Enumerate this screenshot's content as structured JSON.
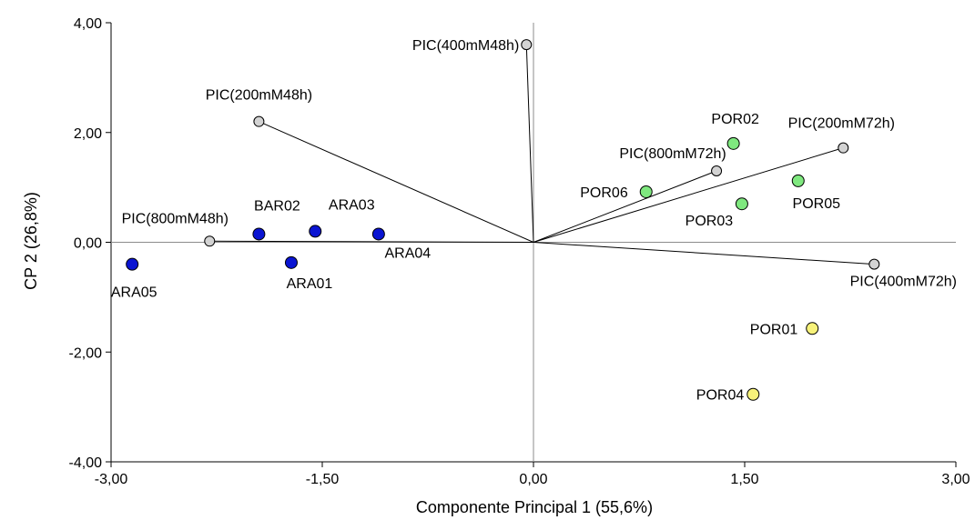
{
  "chart_data": {
    "type": "scatter",
    "title": "",
    "xlabel": "Componente Principal 1 (55,6%)",
    "ylabel": "CP 2 (26,8%)",
    "xlim": [
      -3,
      3
    ],
    "ylim": [
      -4,
      4
    ],
    "x_ticks": [
      "-3,00",
      "-1,50",
      "0,00",
      "1,50",
      "3,00"
    ],
    "y_ticks": [
      "4,00",
      "2,00",
      "0,00",
      "-2,00",
      "-4,00"
    ],
    "grid": false,
    "legend": "none",
    "colors": {
      "vector_point": "#d3d3d3",
      "group_blue": "#0a14d2",
      "group_green": "#7fe87f",
      "group_yellow": "#f7f27a"
    },
    "vectors": [
      {
        "label": "PIC(400mM48h)",
        "x": -0.05,
        "y": 3.6
      },
      {
        "label": "PIC(200mM48h)",
        "x": -1.95,
        "y": 2.2
      },
      {
        "label": "PIC(800mM48h)",
        "x": -2.3,
        "y": 0.02
      },
      {
        "label": "PIC(800mM72h)",
        "x": 1.3,
        "y": 1.3
      },
      {
        "label": "PIC(200mM72h)",
        "x": 2.2,
        "y": 1.72
      },
      {
        "label": "PIC(400mM72h)",
        "x": 2.42,
        "y": -0.4
      }
    ],
    "series": [
      {
        "group": "blue",
        "points": [
          {
            "label": "ARA05",
            "x": -2.85,
            "y": -0.4
          },
          {
            "label": "BAR02",
            "x": -1.95,
            "y": 0.15
          },
          {
            "label": "ARA01",
            "x": -1.72,
            "y": -0.37
          },
          {
            "label": "ARA03",
            "x": -1.55,
            "y": 0.2
          },
          {
            "label": "ARA04",
            "x": -1.1,
            "y": 0.15
          }
        ]
      },
      {
        "group": "green",
        "points": [
          {
            "label": "POR02",
            "x": 1.42,
            "y": 1.8
          },
          {
            "label": "POR06",
            "x": 0.8,
            "y": 0.92
          },
          {
            "label": "POR03",
            "x": 1.48,
            "y": 0.7
          },
          {
            "label": "POR05",
            "x": 1.88,
            "y": 1.12
          }
        ]
      },
      {
        "group": "yellow",
        "points": [
          {
            "label": "POR01",
            "x": 1.98,
            "y": -1.57
          },
          {
            "label": "POR04",
            "x": 1.56,
            "y": -2.77
          }
        ]
      }
    ]
  }
}
